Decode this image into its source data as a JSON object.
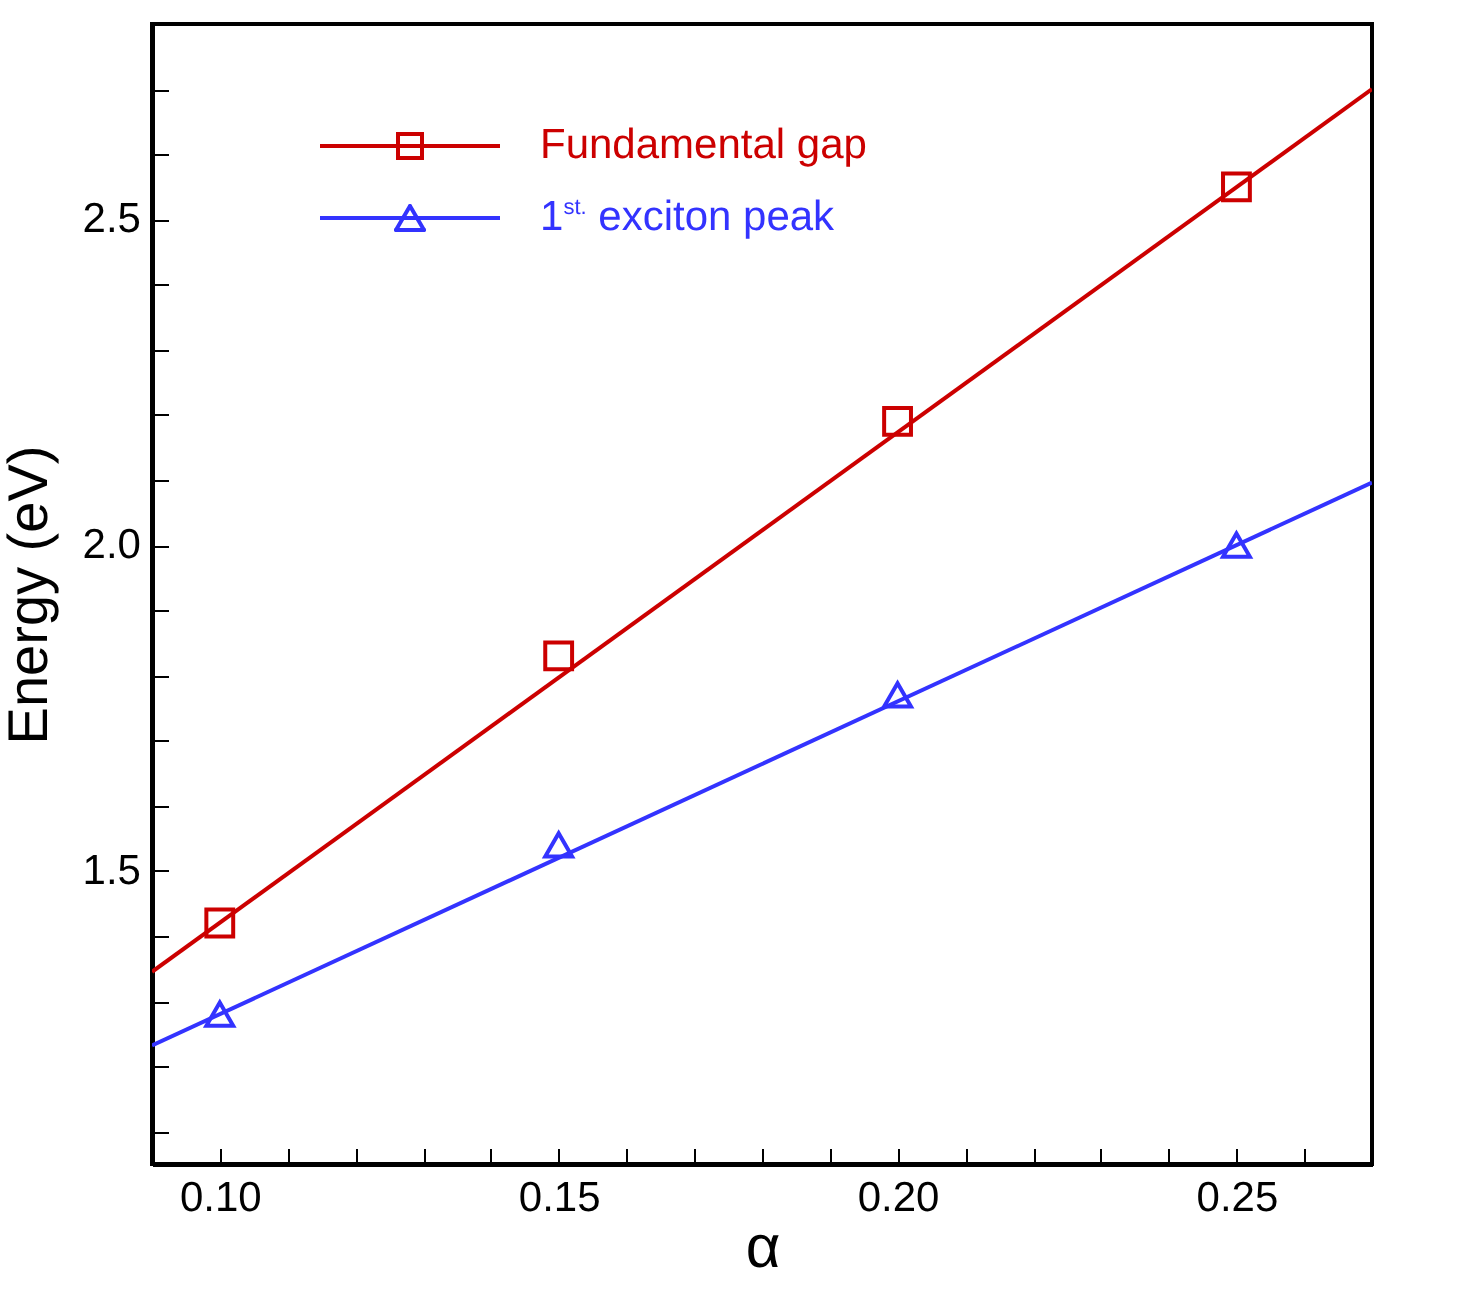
{
  "chart_data": {
    "type": "scatter",
    "xlabel": "α",
    "ylabel": "Energy (eV)",
    "xlim": [
      0.09,
      0.27
    ],
    "ylim": [
      1.05,
      2.8
    ],
    "xticks": [
      {
        "value": 0.09,
        "label": null
      },
      {
        "value": 0.1,
        "label": "0.10"
      },
      {
        "value": 0.11,
        "label": null
      },
      {
        "value": 0.12,
        "label": null
      },
      {
        "value": 0.13,
        "label": null
      },
      {
        "value": 0.14,
        "label": null
      },
      {
        "value": 0.15,
        "label": "0.15"
      },
      {
        "value": 0.16,
        "label": null
      },
      {
        "value": 0.17,
        "label": null
      },
      {
        "value": 0.18,
        "label": null
      },
      {
        "value": 0.19,
        "label": null
      },
      {
        "value": 0.2,
        "label": "0.20"
      },
      {
        "value": 0.21,
        "label": null
      },
      {
        "value": 0.22,
        "label": null
      },
      {
        "value": 0.23,
        "label": null
      },
      {
        "value": 0.24,
        "label": null
      },
      {
        "value": 0.25,
        "label": "0.25"
      },
      {
        "value": 0.26,
        "label": null
      }
    ],
    "yticks": [
      {
        "value": 1.1,
        "label": null
      },
      {
        "value": 1.2,
        "label": null
      },
      {
        "value": 1.3,
        "label": null
      },
      {
        "value": 1.4,
        "label": null
      },
      {
        "value": 1.5,
        "label": "1.5"
      },
      {
        "value": 1.6,
        "label": null
      },
      {
        "value": 1.7,
        "label": null
      },
      {
        "value": 1.8,
        "label": null
      },
      {
        "value": 1.9,
        "label": null
      },
      {
        "value": 2.0,
        "label": "2.0"
      },
      {
        "value": 2.1,
        "label": null
      },
      {
        "value": 2.2,
        "label": null
      },
      {
        "value": 2.3,
        "label": null
      },
      {
        "value": 2.4,
        "label": null
      },
      {
        "value": 2.5,
        "label": "2.5"
      },
      {
        "value": 2.6,
        "label": null
      },
      {
        "value": 2.7,
        "label": null
      }
    ],
    "legend": "top left",
    "grid": false,
    "series": [
      {
        "type": "line",
        "color": "#cc0000",
        "x": [
          0.09,
          0.27
        ],
        "values": [
          1.345,
          2.7
        ]
      },
      {
        "type": "line",
        "color": "#3333ff",
        "x": [
          0.09,
          0.27
        ],
        "values": [
          1.232,
          2.096
        ]
      },
      {
        "name": "Fundamental gap",
        "color": "#cc0000",
        "marker": "square",
        "x": [
          0.1,
          0.15,
          0.2,
          0.25
        ],
        "values": [
          1.42,
          1.83,
          2.19,
          2.55
        ]
      },
      {
        "name": "1$^{st.}$ exciton peak",
        "color": "#3333ff",
        "marker": "triangle",
        "x": [
          0.1,
          0.15,
          0.2,
          0.25
        ],
        "values": [
          1.28,
          1.54,
          1.77,
          2.0
        ]
      }
    ]
  }
}
